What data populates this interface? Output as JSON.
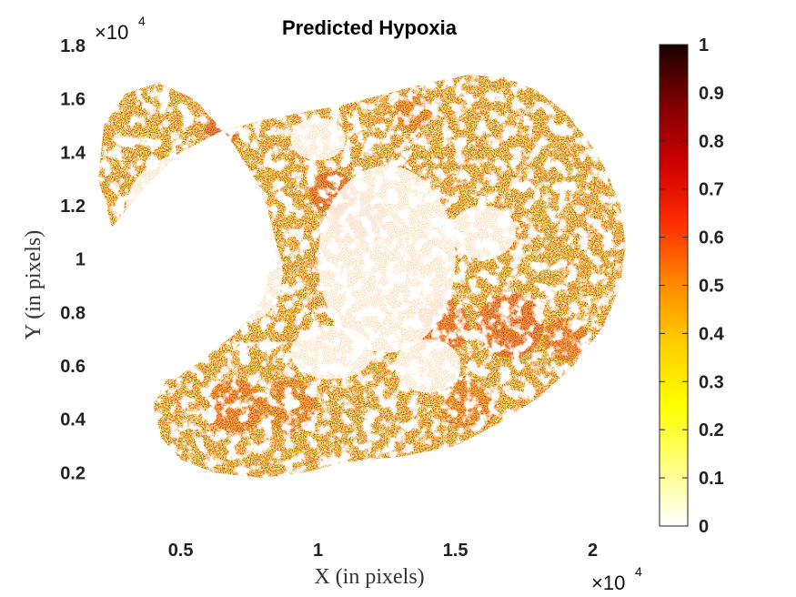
{
  "chart_data": {
    "type": "heatmap",
    "title": "Predicted Hypoxia",
    "xlabel": "X (in pixels)",
    "ylabel": "Y (in pixels)",
    "x_multiplier": "×10",
    "x_multiplier_exp": "4",
    "y_multiplier": "×10",
    "y_multiplier_exp": "4",
    "xlim": [
      0.2,
      2.2
    ],
    "ylim": [
      0.0,
      1.8
    ],
    "xticks": [
      0.5,
      1,
      1.5,
      2
    ],
    "xtick_labels": [
      "0.5",
      "1",
      "1.5",
      "2"
    ],
    "yticks": [
      0.2,
      0.4,
      0.6,
      0.8,
      1,
      1.2,
      1.4,
      1.6,
      1.8
    ],
    "ytick_labels": [
      "0.2",
      "0.4",
      "0.6",
      "0.8",
      "1",
      "1.2",
      "1.4",
      "1.6",
      "1.8"
    ],
    "colorbar": {
      "colormap": "hot (reversed)",
      "range": [
        0,
        1
      ],
      "ticks": [
        0,
        0.1,
        0.2,
        0.3,
        0.4,
        0.5,
        0.6,
        0.7,
        0.8,
        0.9,
        1
      ],
      "tick_labels": [
        "0",
        "0.1",
        "0.2",
        "0.3",
        "0.4",
        "0.5",
        "0.6",
        "0.7",
        "0.8",
        "0.9",
        "1"
      ],
      "colors": [
        "#ffffff",
        "#ffff80",
        "#ffff00",
        "#ffd000",
        "#ff8c00",
        "#ff3000",
        "#d00000",
        "#800000",
        "#1a0000"
      ]
    },
    "tissue_outline_x": [
      0.45,
      0.4,
      0.43,
      0.5,
      0.62,
      0.8,
      0.95,
      1.1,
      1.3,
      1.5,
      1.65,
      1.8,
      1.93,
      2.04,
      2.1,
      2.12,
      2.1,
      2.05,
      1.98,
      1.9,
      1.8,
      1.68,
      1.55,
      1.4,
      1.25,
      1.1,
      0.95,
      0.8,
      0.65,
      0.5,
      0.38,
      0.25,
      0.2,
      0.22,
      0.3,
      0.42,
      0.55,
      0.68,
      0.8,
      0.85,
      0.8,
      0.7,
      0.62,
      0.58,
      0.55,
      0.52,
      0.48
    ],
    "tissue_outline_y": [
      0.55,
      0.45,
      0.33,
      0.25,
      0.2,
      0.18,
      0.2,
      0.24,
      0.26,
      0.3,
      0.38,
      0.48,
      0.6,
      0.75,
      0.9,
      1.05,
      1.2,
      1.33,
      1.45,
      1.55,
      1.63,
      1.68,
      1.69,
      1.66,
      1.62,
      1.58,
      1.55,
      1.52,
      1.48,
      1.4,
      1.28,
      1.12,
      1.3,
      1.5,
      1.62,
      1.66,
      1.6,
      1.45,
      1.25,
      1.05,
      0.85,
      0.72,
      0.66,
      0.62,
      0.6,
      0.58,
      0.55
    ],
    "tissue_outline_note": "",
    "hotspot_regions": [
      {
        "x": 0.65,
        "y": 1.48,
        "r": 0.06,
        "level": 0.75
      },
      {
        "x": 0.7,
        "y": 0.45,
        "r": 0.1,
        "level": 0.6
      },
      {
        "x": 0.9,
        "y": 0.45,
        "r": 0.1,
        "level": 0.55
      },
      {
        "x": 1.05,
        "y": 1.25,
        "r": 0.08,
        "level": 0.7
      },
      {
        "x": 1.15,
        "y": 1.15,
        "r": 0.1,
        "level": 0.6
      },
      {
        "x": 1.35,
        "y": 1.55,
        "r": 0.07,
        "level": 0.55
      },
      {
        "x": 1.45,
        "y": 0.75,
        "r": 0.1,
        "level": 0.65
      },
      {
        "x": 1.7,
        "y": 0.75,
        "r": 0.12,
        "level": 0.7
      },
      {
        "x": 1.9,
        "y": 0.7,
        "r": 0.08,
        "level": 0.6
      },
      {
        "x": 2.08,
        "y": 0.75,
        "r": 0.03,
        "level": 0.9
      },
      {
        "x": 1.55,
        "y": 0.45,
        "r": 0.1,
        "level": 0.55
      }
    ],
    "void_regions": [
      {
        "x": 0.55,
        "y": 1.18,
        "rx": 0.25,
        "ry": 0.22
      },
      {
        "x": 0.75,
        "y": 0.95,
        "rx": 0.12,
        "ry": 0.18
      },
      {
        "x": 1.25,
        "y": 1.0,
        "rx": 0.25,
        "ry": 0.35
      },
      {
        "x": 1.05,
        "y": 0.65,
        "rx": 0.15,
        "ry": 0.1
      },
      {
        "x": 1.4,
        "y": 0.6,
        "rx": 0.12,
        "ry": 0.1
      },
      {
        "x": 1.6,
        "y": 1.1,
        "rx": 0.12,
        "ry": 0.1
      },
      {
        "x": 1.0,
        "y": 1.45,
        "rx": 0.1,
        "ry": 0.08
      }
    ]
  }
}
